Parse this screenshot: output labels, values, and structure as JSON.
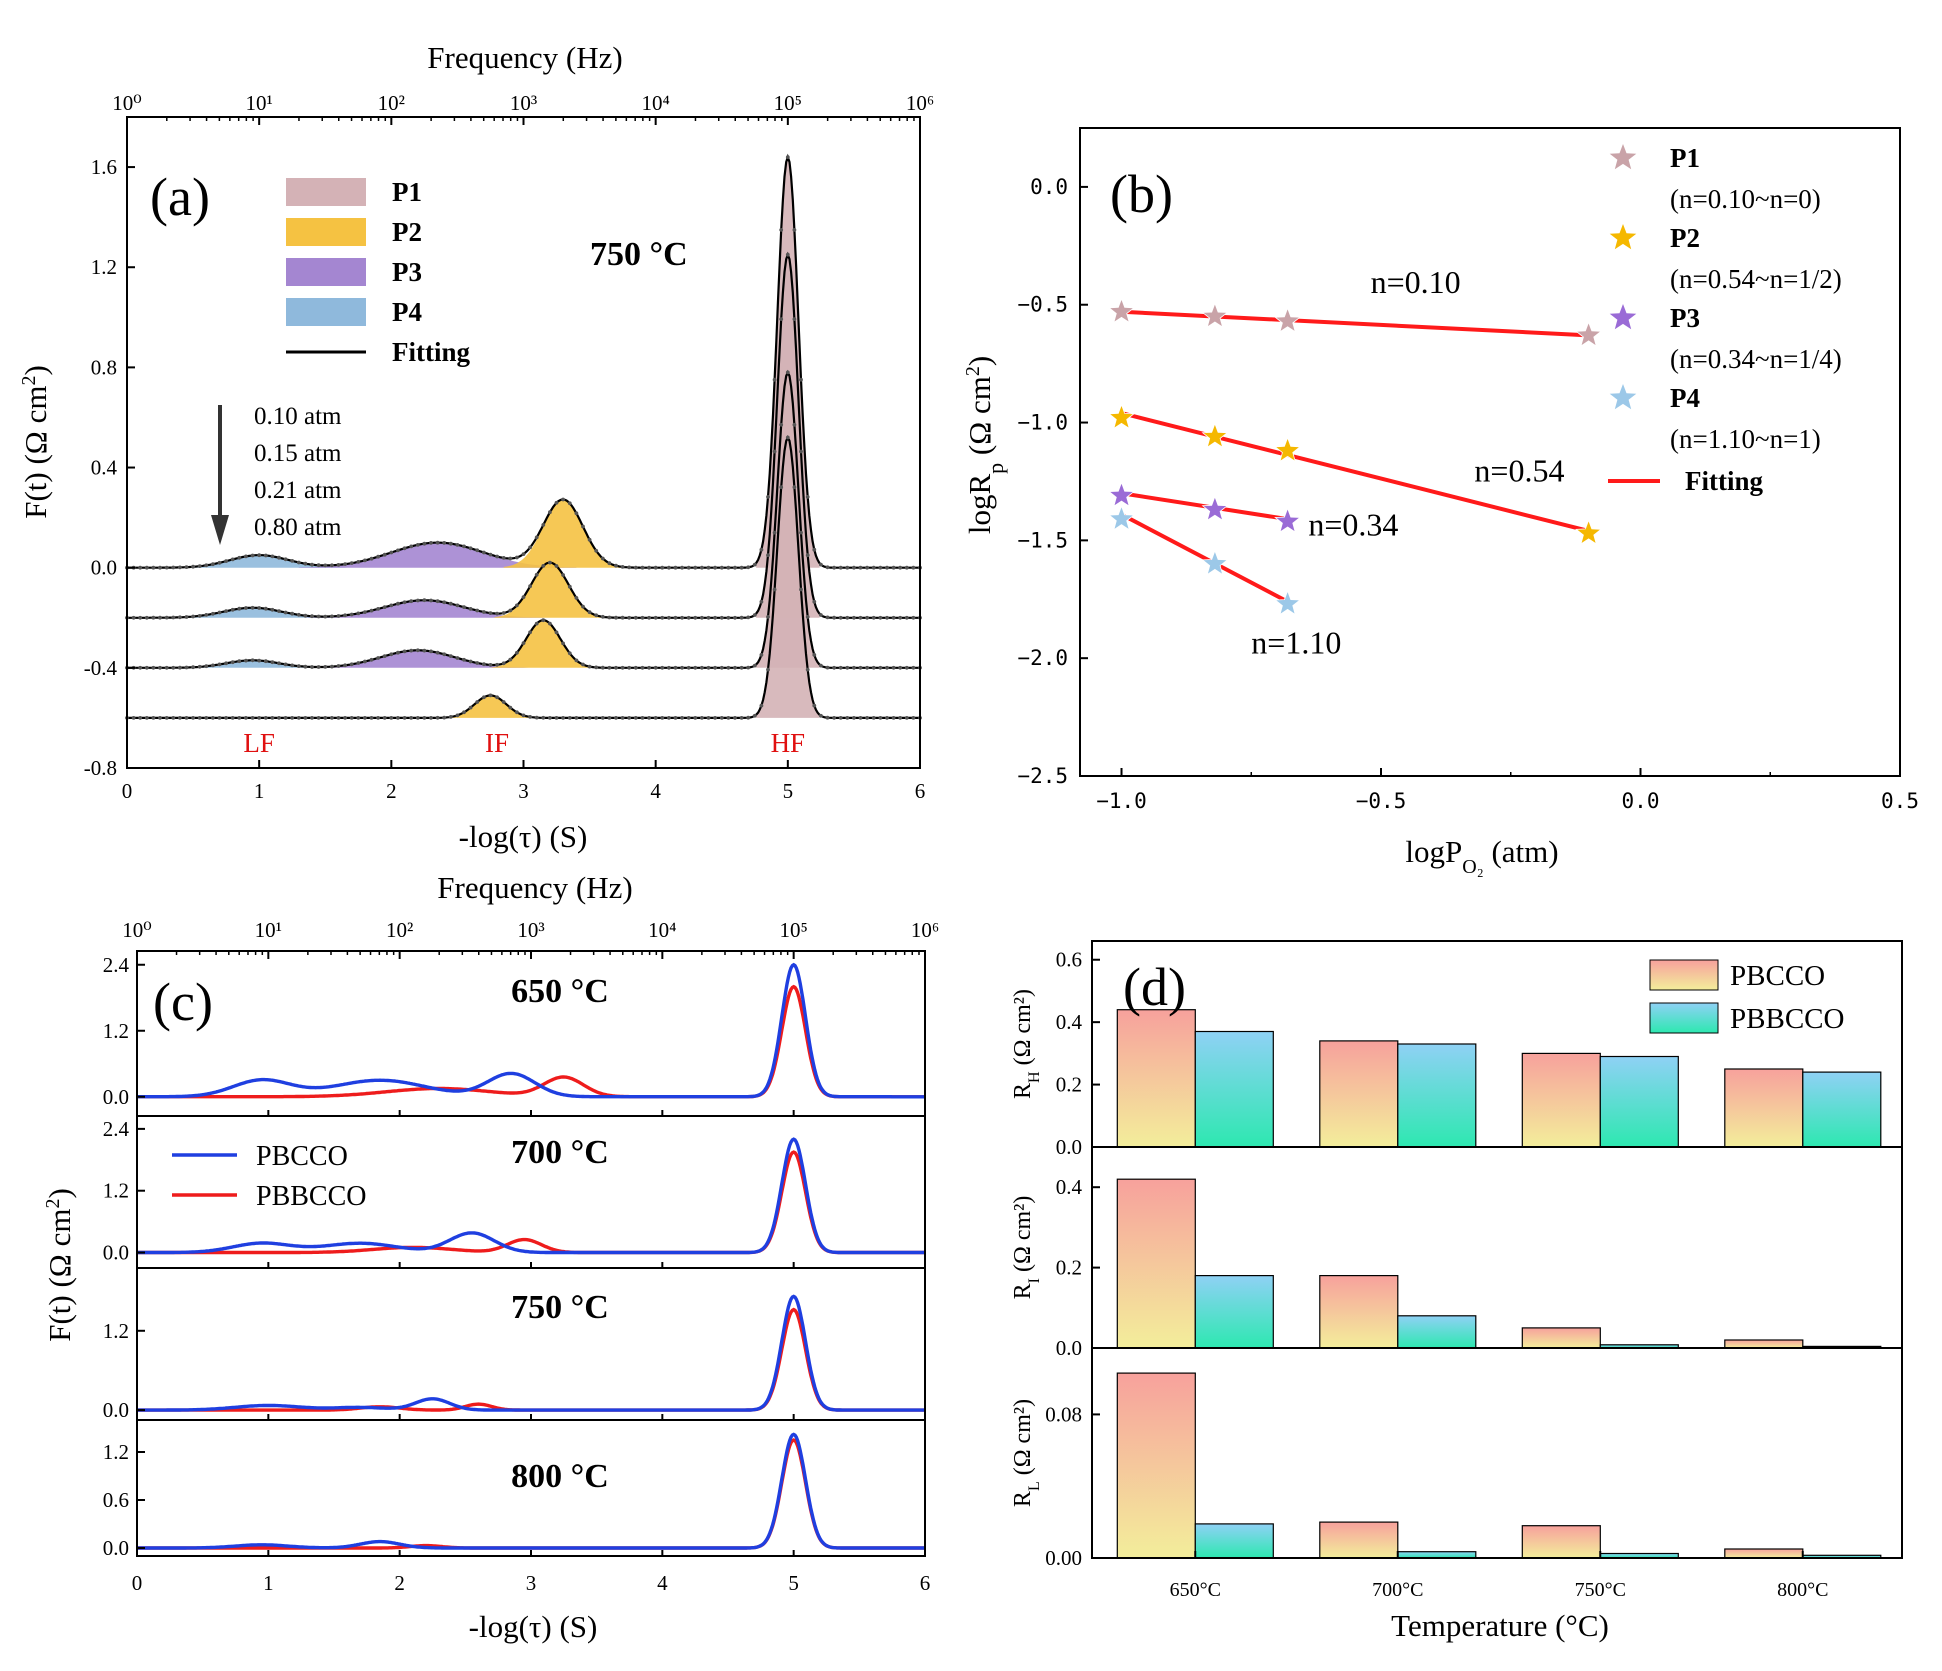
{
  "chart_data": [
    {
      "panel": "(a)",
      "type": "area",
      "temperature_label": "750 °C",
      "xlabel": "-log(τ) (S)",
      "ylabel": "F(t) (Ω cm²)",
      "top_xlabel": "Frequency (Hz)",
      "xlim": [
        0,
        6
      ],
      "ylim": [
        -0.8,
        1.8
      ],
      "x_ticks": [
        "0",
        "1",
        "2",
        "3",
        "4",
        "5",
        "6"
      ],
      "y_ticks": [
        "-0.8",
        "-0.4",
        "0.0",
        "0.4",
        "0.8",
        "1.2",
        "1.6"
      ],
      "top_ticks": [
        "10⁰",
        "10¹",
        "10²",
        "10³",
        "10⁴",
        "10⁵",
        "10⁶"
      ],
      "legend": [
        "P1",
        "P2",
        "P3",
        "P4",
        "Fitting"
      ],
      "colors": {
        "P1": "#d4b2b6",
        "P2": "#f5c242",
        "P3": "#a486d1",
        "P4": "#8fb9dc",
        "Fitting": "#000000"
      },
      "pressures": [
        "0.10 atm",
        "0.15 atm",
        "0.21 atm",
        "0.80 atm"
      ],
      "region_labels": [
        "LF",
        "IF",
        "HF"
      ],
      "curves": [
        {
          "pressure": "0.10 atm",
          "offset": 0.0,
          "peaks": [
            {
              "series": "P4",
              "x": 1.0,
              "h": 0.05,
              "w": 0.22
            },
            {
              "series": "P3",
              "x": 2.35,
              "h": 0.1,
              "w": 0.35
            },
            {
              "series": "P2",
              "x": 3.3,
              "h": 0.27,
              "w": 0.15
            },
            {
              "series": "P1",
              "x": 5.0,
              "h": 1.64,
              "w": 0.08
            }
          ]
        },
        {
          "pressure": "0.15 atm",
          "offset": -0.2,
          "peaks": [
            {
              "series": "P4",
              "x": 0.95,
              "h": 0.04,
              "w": 0.22
            },
            {
              "series": "P3",
              "x": 2.25,
              "h": 0.07,
              "w": 0.3
            },
            {
              "series": "P2",
              "x": 3.2,
              "h": 0.22,
              "w": 0.14
            },
            {
              "series": "P1",
              "x": 5.0,
              "h": 1.45,
              "w": 0.08
            }
          ]
        },
        {
          "pressure": "0.21 atm",
          "offset": -0.4,
          "peaks": [
            {
              "series": "P4",
              "x": 0.95,
              "h": 0.03,
              "w": 0.2
            },
            {
              "series": "P3",
              "x": 2.2,
              "h": 0.07,
              "w": 0.28
            },
            {
              "series": "P2",
              "x": 3.15,
              "h": 0.19,
              "w": 0.13
            },
            {
              "series": "P1",
              "x": 5.0,
              "h": 1.18,
              "w": 0.08
            }
          ]
        },
        {
          "pressure": "0.80 atm",
          "offset": -0.6,
          "peaks": [
            {
              "series": "P2",
              "x": 2.75,
              "h": 0.09,
              "w": 0.12
            },
            {
              "series": "P1",
              "x": 5.0,
              "h": 1.12,
              "w": 0.08
            }
          ]
        }
      ]
    },
    {
      "panel": "(b)",
      "type": "scatter",
      "xlabel": "logP_O₂ (atm)",
      "ylabel": "logR_p (Ω cm²)",
      "xlim": [
        -1.08,
        0.5
      ],
      "ylim": [
        -2.5,
        0.25
      ],
      "x_ticks": [
        {
          "v": -1.0,
          "t": "−1.0"
        },
        {
          "v": -0.5,
          "t": "−0.5"
        },
        {
          "v": 0.0,
          "t": "0.0"
        },
        {
          "v": 0.5,
          "t": "0.5"
        }
      ],
      "y_ticks": [
        {
          "v": 0.0,
          "t": "0.0"
        },
        {
          "v": -0.5,
          "t": "−0.5"
        },
        {
          "v": -1.0,
          "t": "−1.0"
        },
        {
          "v": -1.5,
          "t": "−1.5"
        },
        {
          "v": -2.0,
          "t": "−2.0"
        },
        {
          "v": -2.5,
          "t": "−2.5"
        }
      ],
      "series": [
        {
          "name": "P1",
          "note": "(n=0.10~n=0)",
          "color": "#c9a3a8",
          "x": [
            -1.0,
            -0.82,
            -0.68,
            -0.1
          ],
          "y": [
            -0.53,
            -0.55,
            -0.57,
            -0.63
          ],
          "fit": [
            [
              -1.0,
              -0.53
            ],
            [
              -0.1,
              -0.63
            ]
          ],
          "n_label": "n=0.10",
          "n_pos": [
            -0.52,
            -0.45
          ]
        },
        {
          "name": "P2",
          "note": "(n=0.54~n=1/2)",
          "color": "#f5b800",
          "x": [
            -1.0,
            -0.82,
            -0.68,
            -0.1
          ],
          "y": [
            -0.98,
            -1.06,
            -1.12,
            -1.47
          ],
          "fit": [
            [
              -1.0,
              -0.96
            ],
            [
              -0.1,
              -1.46
            ]
          ],
          "n_label": "n=0.54",
          "n_pos": [
            -0.32,
            -1.25
          ]
        },
        {
          "name": "P3",
          "note": "(n=0.34~n=1/4)",
          "color": "#9a6bd6",
          "x": [
            -1.0,
            -0.82,
            -0.68
          ],
          "y": [
            -1.31,
            -1.37,
            -1.42
          ],
          "fit": [
            [
              -1.0,
              -1.3
            ],
            [
              -0.68,
              -1.41
            ]
          ],
          "n_label": "n=0.34",
          "n_pos": [
            -0.64,
            -1.48
          ]
        },
        {
          "name": "P4",
          "note": "(n=1.10~n=1)",
          "color": "#9cc8e8",
          "x": [
            -1.0,
            -0.82,
            -0.68
          ],
          "y": [
            -1.41,
            -1.6,
            -1.77
          ],
          "fit": [
            [
              -1.0,
              -1.39
            ],
            [
              -0.68,
              -1.76
            ]
          ],
          "n_label": "n=1.10",
          "n_pos": [
            -0.75,
            -1.98
          ]
        }
      ],
      "fit_label": "Fitting",
      "fit_color": "#ff1a1a"
    },
    {
      "panel": "(c)",
      "type": "line",
      "xlabel": "-log(τ) (S)",
      "ylabel": "F(t) (Ω cm²)",
      "top_xlabel": "Frequency (Hz)",
      "xlim": [
        0,
        6
      ],
      "x_ticks": [
        "0",
        "1",
        "2",
        "3",
        "4",
        "5",
        "6"
      ],
      "top_ticks": [
        "10⁰",
        "10¹",
        "10²",
        "10³",
        "10⁴",
        "10⁵",
        "10⁶"
      ],
      "legend": [
        {
          "name": "PBCCO",
          "color": "#1f3fe0"
        },
        {
          "name": "PBBCCO",
          "color": "#ee1c1c"
        }
      ],
      "subplots": [
        {
          "temperature_label": "650 °C",
          "ylim": [
            -0.35,
            2.65
          ],
          "y_ticks": [
            "0.0",
            "1.2",
            "2.4"
          ],
          "y_tick_vals": [
            0.0,
            1.2,
            2.4
          ],
          "PBCCO": [
            {
              "x": 0.95,
              "h": 0.3,
              "w": 0.22
            },
            {
              "x": 1.85,
              "h": 0.3,
              "w": 0.35
            },
            {
              "x": 2.85,
              "h": 0.42,
              "w": 0.18
            },
            {
              "x": 5.0,
              "h": 2.4,
              "w": 0.09
            }
          ],
          "PBBCCO": [
            {
              "x": 2.3,
              "h": 0.15,
              "w": 0.4
            },
            {
              "x": 3.25,
              "h": 0.35,
              "w": 0.15
            },
            {
              "x": 5.0,
              "h": 2.0,
              "w": 0.09
            }
          ]
        },
        {
          "temperature_label": "700 °C",
          "ylim": [
            -0.3,
            2.65
          ],
          "y_ticks": [
            "0.0",
            "1.2",
            "2.4"
          ],
          "y_tick_vals": [
            0.0,
            1.2,
            2.4
          ],
          "PBCCO": [
            {
              "x": 0.95,
              "h": 0.18,
              "w": 0.22
            },
            {
              "x": 1.7,
              "h": 0.18,
              "w": 0.28
            },
            {
              "x": 2.55,
              "h": 0.38,
              "w": 0.17
            },
            {
              "x": 5.0,
              "h": 2.2,
              "w": 0.09
            }
          ],
          "PBBCCO": [
            {
              "x": 2.1,
              "h": 0.1,
              "w": 0.3
            },
            {
              "x": 2.95,
              "h": 0.25,
              "w": 0.13
            },
            {
              "x": 5.0,
              "h": 1.95,
              "w": 0.09
            }
          ]
        },
        {
          "temperature_label": "750 °C",
          "ylim": [
            -0.15,
            2.15
          ],
          "y_ticks": [
            "0.0",
            "1.2"
          ],
          "y_tick_vals": [
            0.0,
            1.2
          ],
          "PBCCO": [
            {
              "x": 1.0,
              "h": 0.07,
              "w": 0.25
            },
            {
              "x": 1.7,
              "h": 0.04,
              "w": 0.2
            },
            {
              "x": 2.25,
              "h": 0.17,
              "w": 0.13
            },
            {
              "x": 5.0,
              "h": 1.72,
              "w": 0.09
            }
          ],
          "PBBCCO": [
            {
              "x": 1.85,
              "h": 0.05,
              "w": 0.15
            },
            {
              "x": 2.6,
              "h": 0.09,
              "w": 0.1
            },
            {
              "x": 5.0,
              "h": 1.52,
              "w": 0.09
            }
          ]
        },
        {
          "temperature_label": "800 °C",
          "ylim": [
            -0.1,
            1.6
          ],
          "y_ticks": [
            "0.0",
            "0.6",
            "1.2"
          ],
          "y_tick_vals": [
            0.0,
            0.6,
            1.2
          ],
          "PBCCO": [
            {
              "x": 0.95,
              "h": 0.04,
              "w": 0.2
            },
            {
              "x": 1.85,
              "h": 0.08,
              "w": 0.15
            },
            {
              "x": 5.0,
              "h": 1.42,
              "w": 0.09
            }
          ],
          "PBBCCO": [
            {
              "x": 2.2,
              "h": 0.03,
              "w": 0.12
            },
            {
              "x": 5.0,
              "h": 1.35,
              "w": 0.09
            }
          ]
        }
      ]
    },
    {
      "panel": "(d)",
      "type": "bar",
      "xlabel": "Temperature (°C)",
      "categories": [
        "650°C",
        "700°C",
        "750°C",
        "800°C"
      ],
      "legend": [
        "PBCCO",
        "PBBCCO"
      ],
      "subplots": [
        {
          "ylabel_main": "R",
          "ylabel_sub": "H",
          "ylabel_rest": " (Ω cm²)",
          "ylim": [
            0,
            0.66
          ],
          "y_ticks": [
            {
              "v": 0.0,
              "t": "0.0"
            },
            {
              "v": 0.2,
              "t": "0.2"
            },
            {
              "v": 0.4,
              "t": "0.4"
            },
            {
              "v": 0.6,
              "t": "0.6"
            }
          ],
          "series": [
            {
              "name": "PBCCO",
              "values": [
                0.44,
                0.34,
                0.3,
                0.25
              ]
            },
            {
              "name": "PBBCCO",
              "values": [
                0.37,
                0.33,
                0.29,
                0.24
              ]
            }
          ]
        },
        {
          "ylabel_main": "R",
          "ylabel_sub": "I",
          "ylabel_rest": " (Ω cm²)",
          "ylim": [
            0,
            0.5
          ],
          "y_ticks": [
            {
              "v": 0.0,
              "t": "0.0"
            },
            {
              "v": 0.2,
              "t": "0.2"
            },
            {
              "v": 0.4,
              "t": "0.4"
            }
          ],
          "series": [
            {
              "name": "PBCCO",
              "values": [
                0.42,
                0.18,
                0.05,
                0.02
              ]
            },
            {
              "name": "PBBCCO",
              "values": [
                0.18,
                0.08,
                0.008,
                0.004
              ]
            }
          ]
        },
        {
          "ylabel_main": "R",
          "ylabel_sub": "L",
          "ylabel_rest": " (Ω cm²)",
          "ylim": [
            0,
            0.117
          ],
          "y_ticks": [
            {
              "v": 0.0,
              "t": "0.00"
            },
            {
              "v": 0.08,
              "t": "0.08"
            }
          ],
          "series": [
            {
              "name": "PBCCO",
              "values": [
                0.103,
                0.02,
                0.018,
                0.005
              ]
            },
            {
              "name": "PBBCCO",
              "values": [
                0.019,
                0.0035,
                0.0025,
                0.0015
              ]
            }
          ]
        }
      ]
    }
  ]
}
